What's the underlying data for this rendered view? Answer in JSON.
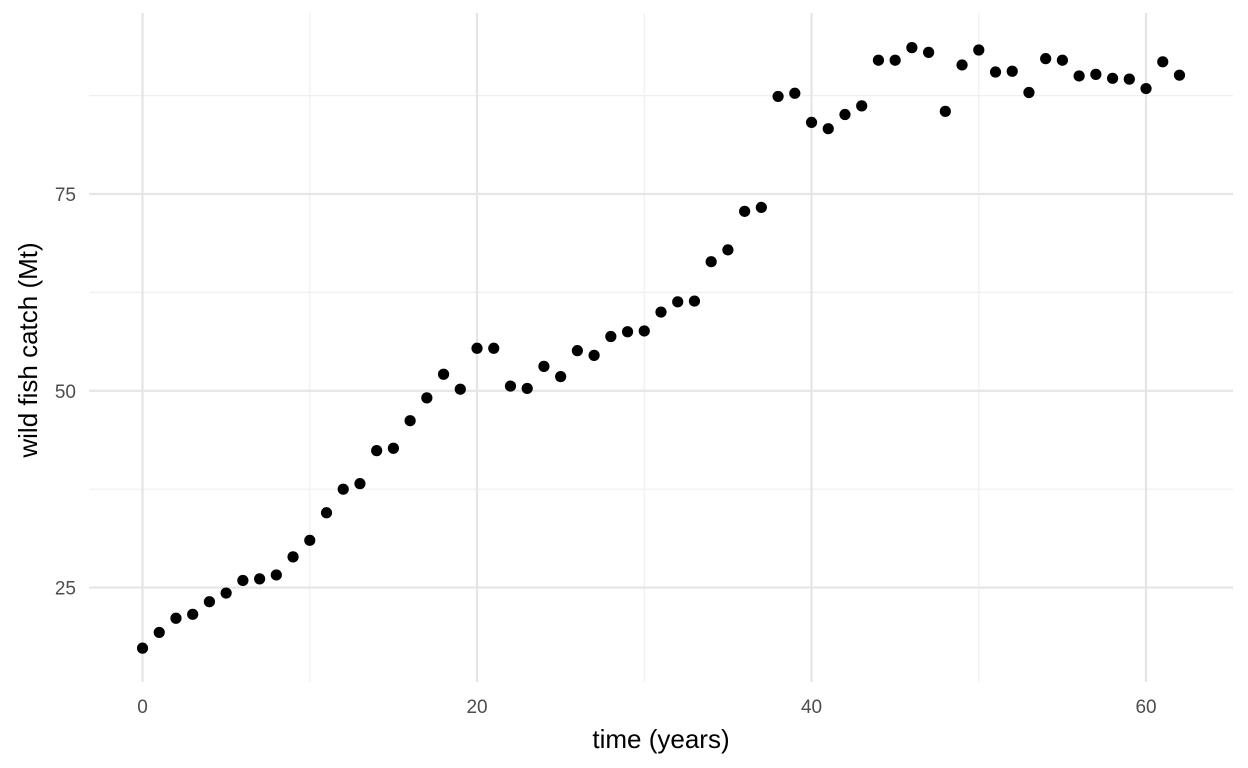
{
  "chart_data": {
    "type": "scatter",
    "title": "",
    "xlabel": "time (years)",
    "ylabel": "wild fish catch (Mt)",
    "xlim": [
      -3.2,
      65.2
    ],
    "ylim": [
      13.0,
      98.0
    ],
    "x_ticks": [
      0,
      20,
      40,
      60
    ],
    "x_tick_labels": [
      "0",
      "20",
      "40",
      "60"
    ],
    "x_minor_ticks": [
      10,
      30,
      50
    ],
    "y_ticks": [
      25,
      50,
      75
    ],
    "y_tick_labels": [
      "25",
      "50",
      "75"
    ],
    "y_minor_ticks": [
      37.5,
      62.5,
      87.5
    ],
    "grid": true,
    "legend": "none",
    "colors": {
      "point": "#000000",
      "major_grid": "#e5e5e5",
      "minor_grid": "#efefef",
      "tick_text": "#4d4d4d",
      "title_text": "#000000"
    },
    "x": [
      0,
      1,
      2,
      3,
      4,
      5,
      6,
      7,
      8,
      9,
      10,
      11,
      12,
      13,
      14,
      15,
      16,
      17,
      18,
      19,
      20,
      21,
      22,
      23,
      24,
      25,
      26,
      27,
      28,
      29,
      30,
      31,
      32,
      33,
      34,
      35,
      36,
      37,
      38,
      39,
      40,
      41,
      42,
      43,
      44,
      45,
      46,
      47,
      48,
      49,
      50,
      51,
      52,
      53,
      54,
      55,
      56,
      57,
      58,
      59,
      60,
      61,
      62
    ],
    "y": [
      17.3,
      19.3,
      21.1,
      21.6,
      23.2,
      24.3,
      25.9,
      26.1,
      26.6,
      28.9,
      31.0,
      34.5,
      37.5,
      38.2,
      42.4,
      42.7,
      46.2,
      49.1,
      52.1,
      50.2,
      55.4,
      55.4,
      50.6,
      50.3,
      53.1,
      51.8,
      55.1,
      54.5,
      56.9,
      57.5,
      57.6,
      60.0,
      61.3,
      61.4,
      66.4,
      67.9,
      72.8,
      73.3,
      87.4,
      87.8,
      84.1,
      83.3,
      85.1,
      86.2,
      92.0,
      92.0,
      93.6,
      93.0,
      85.5,
      91.4,
      93.3,
      90.5,
      90.6,
      87.9,
      92.2,
      92.0,
      90.0,
      90.2,
      89.7,
      89.6,
      88.4,
      91.8,
      90.1
    ]
  }
}
